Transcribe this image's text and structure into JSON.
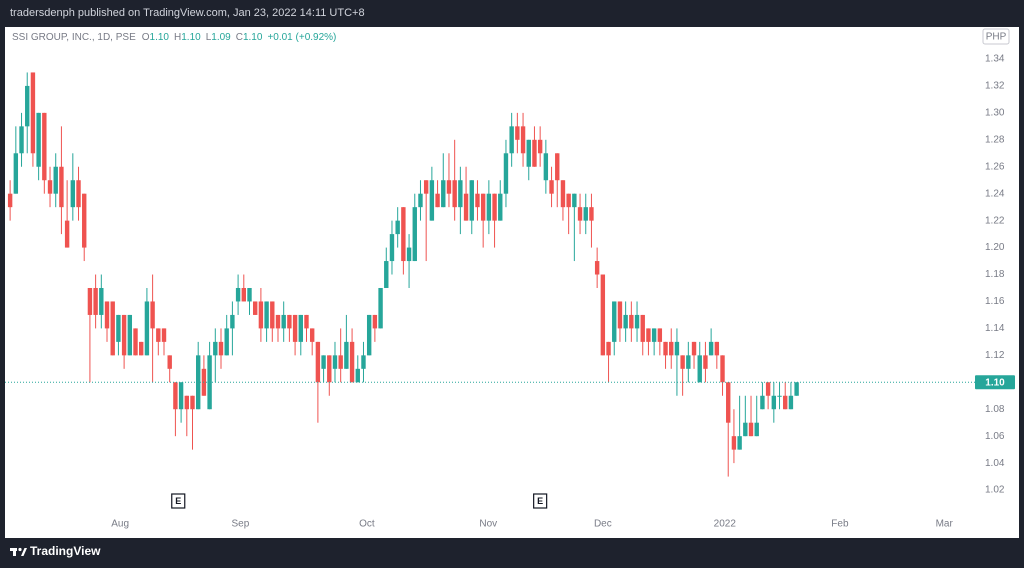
{
  "header": "tradersdenph published on TradingView.com, Jan 23, 2022 14:11 UTC+8",
  "footer": "TradingView",
  "chart_data": {
    "type": "candlestick",
    "symbol": "SSI GROUP, INC., 1D, PSE",
    "legend_keys": [
      "O",
      "H",
      "L",
      "C"
    ],
    "legend_values": [
      "1.10",
      "1.10",
      "1.09",
      "1.10"
    ],
    "change": "+0.01 (+0.92%)",
    "currency": "PHP",
    "up_color": "#26a69a",
    "down_color": "#ef5350",
    "last_price": {
      "value": 1.1,
      "label": "1.10"
    },
    "events": [
      {
        "x": 29.5,
        "label": "E"
      },
      {
        "x": 93,
        "label": "E"
      }
    ],
    "xlim": [
      -0.9,
      169.3
    ],
    "xticks": [
      {
        "value": 19.3,
        "label": "Aug"
      },
      {
        "value": 40.4,
        "label": "Sep"
      },
      {
        "value": 62.6,
        "label": "Oct"
      },
      {
        "value": 83.9,
        "label": "Nov"
      },
      {
        "value": 104,
        "label": "Dec"
      },
      {
        "value": 125.4,
        "label": "2022"
      },
      {
        "value": 145.6,
        "label": "Feb"
      },
      {
        "value": 163.9,
        "label": "Mar"
      }
    ],
    "ylim": [
      1.0,
      1.363
    ],
    "yticks": [
      1.02,
      1.04,
      1.06,
      1.08,
      {
        "value": 1.1,
        "label": "1.10"
      },
      1.12,
      1.14,
      1.16,
      1.18,
      {
        "value": 1.2,
        "label": "1.20"
      },
      1.22,
      1.24,
      1.26,
      1.28,
      {
        "value": 1.3,
        "label": "1.30"
      },
      1.32,
      1.34
    ],
    "open": [
      1.24,
      1.24,
      1.27,
      1.29,
      1.33,
      1.26,
      1.3,
      1.25,
      1.24,
      1.26,
      1.22,
      1.23,
      1.25,
      1.24,
      1.17,
      1.17,
      1.15,
      1.16,
      1.16,
      1.13,
      1.15,
      1.12,
      1.14,
      1.13,
      1.12,
      1.16,
      1.14,
      1.14,
      1.12,
      1.1,
      1.08,
      1.09,
      1.09,
      1.08,
      1.11,
      1.08,
      1.12,
      1.13,
      1.12,
      1.14,
      1.16,
      1.17,
      1.16,
      1.16,
      1.16,
      1.14,
      1.16,
      1.15,
      1.14,
      1.15,
      1.15,
      1.13,
      1.15,
      1.14,
      1.13,
      1.11,
      1.12,
      1.11,
      1.12,
      1.11,
      1.13,
      1.1,
      1.11,
      1.12,
      1.15,
      1.14,
      1.17,
      1.19,
      1.21,
      1.23,
      1.19,
      1.19,
      1.23,
      1.25,
      1.22,
      1.24,
      1.23,
      1.25,
      1.25,
      1.23,
      1.24,
      1.22,
      1.24,
      1.24,
      1.22,
      1.24,
      1.22,
      1.24,
      1.27,
      1.29,
      1.29,
      1.26,
      1.28,
      1.28,
      1.25,
      1.25,
      1.27,
      1.25,
      1.24,
      1.23,
      1.23,
      1.22,
      1.23,
      1.19,
      1.18,
      1.13,
      1.13,
      1.16,
      1.14,
      1.15,
      1.14,
      1.15,
      1.14,
      1.13,
      1.14,
      1.13,
      1.13,
      1.12,
      1.12,
      1.11,
      1.13,
      1.1,
      1.12,
      1.12,
      1.13,
      1.12,
      1.1,
      1.06,
      1.05,
      1.06,
      1.07,
      1.06,
      1.08,
      1.1,
      1.08,
      1.09,
      1.09,
      1.08,
      1.09
    ],
    "high": [
      1.25,
      1.29,
      1.3,
      1.33,
      1.33,
      1.3,
      1.3,
      1.26,
      1.27,
      1.29,
      1.25,
      1.27,
      1.26,
      1.24,
      1.17,
      1.18,
      1.18,
      1.16,
      1.16,
      1.15,
      1.15,
      1.15,
      1.14,
      1.13,
      1.17,
      1.18,
      1.14,
      1.14,
      1.12,
      1.1,
      1.1,
      1.09,
      1.09,
      1.13,
      1.12,
      1.13,
      1.14,
      1.14,
      1.15,
      1.16,
      1.18,
      1.18,
      1.17,
      1.16,
      1.17,
      1.16,
      1.16,
      1.15,
      1.16,
      1.15,
      1.15,
      1.15,
      1.15,
      1.14,
      1.13,
      1.12,
      1.12,
      1.13,
      1.14,
      1.15,
      1.14,
      1.12,
      1.13,
      1.15,
      1.15,
      1.17,
      1.2,
      1.22,
      1.23,
      1.23,
      1.21,
      1.24,
      1.25,
      1.25,
      1.26,
      1.25,
      1.27,
      1.27,
      1.28,
      1.26,
      1.26,
      1.25,
      1.25,
      1.24,
      1.25,
      1.24,
      1.25,
      1.28,
      1.3,
      1.3,
      1.3,
      1.28,
      1.29,
      1.29,
      1.28,
      1.26,
      1.27,
      1.25,
      1.24,
      1.24,
      1.24,
      1.24,
      1.24,
      1.2,
      1.18,
      1.13,
      1.16,
      1.16,
      1.16,
      1.16,
      1.16,
      1.15,
      1.14,
      1.14,
      1.14,
      1.13,
      1.14,
      1.14,
      1.12,
      1.13,
      1.13,
      1.13,
      1.13,
      1.14,
      1.13,
      1.12,
      1.1,
      1.08,
      1.09,
      1.09,
      1.09,
      1.09,
      1.1,
      1.1,
      1.1,
      1.1,
      1.1,
      1.1,
      1.1
    ],
    "low": [
      1.22,
      1.24,
      1.26,
      1.27,
      1.26,
      1.25,
      1.24,
      1.23,
      1.23,
      1.21,
      1.2,
      1.22,
      1.22,
      1.19,
      1.1,
      1.14,
      1.14,
      1.13,
      1.12,
      1.12,
      1.11,
      1.12,
      1.12,
      1.12,
      1.12,
      1.1,
      1.12,
      1.12,
      1.1,
      1.06,
      1.07,
      1.06,
      1.05,
      1.08,
      1.09,
      1.08,
      1.1,
      1.11,
      1.12,
      1.12,
      1.15,
      1.16,
      1.15,
      1.15,
      1.13,
      1.13,
      1.13,
      1.13,
      1.13,
      1.13,
      1.12,
      1.12,
      1.13,
      1.12,
      1.07,
      1.1,
      1.09,
      1.1,
      1.1,
      1.11,
      1.1,
      1.1,
      1.1,
      1.12,
      1.13,
      1.14,
      1.17,
      1.18,
      1.2,
      1.18,
      1.17,
      1.19,
      1.22,
      1.19,
      1.22,
      1.23,
      1.23,
      1.23,
      1.22,
      1.21,
      1.22,
      1.21,
      1.22,
      1.2,
      1.21,
      1.2,
      1.22,
      1.23,
      1.26,
      1.27,
      1.26,
      1.25,
      1.26,
      1.26,
      1.24,
      1.23,
      1.23,
      1.22,
      1.21,
      1.19,
      1.21,
      1.21,
      1.2,
      1.17,
      1.12,
      1.1,
      1.12,
      1.13,
      1.13,
      1.13,
      1.13,
      1.12,
      1.12,
      1.12,
      1.12,
      1.11,
      1.11,
      1.09,
      1.09,
      1.1,
      1.11,
      1.1,
      1.1,
      1.12,
      1.11,
      1.09,
      1.03,
      1.04,
      1.05,
      1.06,
      1.06,
      1.06,
      1.08,
      1.08,
      1.07,
      1.08,
      1.08,
      1.08,
      1.09
    ],
    "close": [
      1.23,
      1.27,
      1.29,
      1.32,
      1.27,
      1.3,
      1.25,
      1.24,
      1.26,
      1.23,
      1.2,
      1.25,
      1.23,
      1.2,
      1.15,
      1.15,
      1.17,
      1.14,
      1.12,
      1.15,
      1.12,
      1.15,
      1.12,
      1.12,
      1.16,
      1.14,
      1.13,
      1.13,
      1.11,
      1.08,
      1.1,
      1.08,
      1.08,
      1.12,
      1.09,
      1.12,
      1.13,
      1.12,
      1.14,
      1.15,
      1.17,
      1.16,
      1.17,
      1.15,
      1.14,
      1.16,
      1.14,
      1.14,
      1.15,
      1.14,
      1.13,
      1.15,
      1.14,
      1.13,
      1.1,
      1.12,
      1.1,
      1.12,
      1.11,
      1.13,
      1.1,
      1.11,
      1.12,
      1.15,
      1.14,
      1.17,
      1.19,
      1.21,
      1.22,
      1.19,
      1.2,
      1.23,
      1.24,
      1.24,
      1.25,
      1.23,
      1.25,
      1.24,
      1.23,
      1.25,
      1.22,
      1.25,
      1.23,
      1.22,
      1.24,
      1.22,
      1.24,
      1.27,
      1.29,
      1.28,
      1.27,
      1.28,
      1.26,
      1.27,
      1.27,
      1.24,
      1.25,
      1.23,
      1.23,
      1.24,
      1.22,
      1.23,
      1.22,
      1.18,
      1.12,
      1.12,
      1.16,
      1.14,
      1.15,
      1.14,
      1.15,
      1.13,
      1.13,
      1.14,
      1.13,
      1.12,
      1.12,
      1.13,
      1.11,
      1.12,
      1.12,
      1.12,
      1.11,
      1.13,
      1.12,
      1.1,
      1.07,
      1.05,
      1.06,
      1.07,
      1.06,
      1.07,
      1.09,
      1.09,
      1.09,
      1.09,
      1.08,
      1.09,
      1.1
    ]
  }
}
